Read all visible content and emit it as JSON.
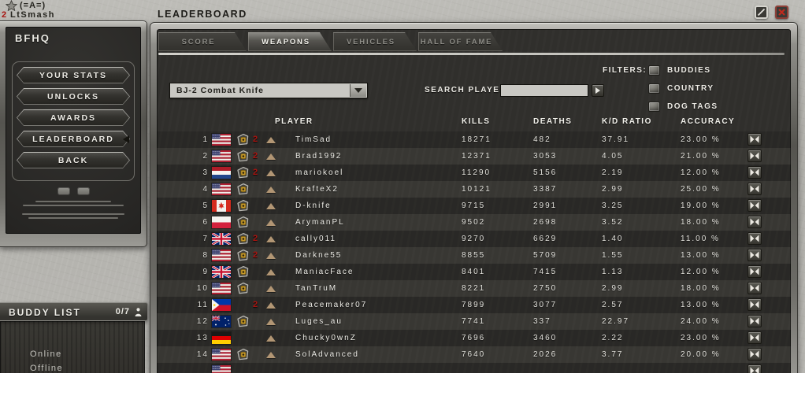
{
  "player_info": {
    "rank_level": "2",
    "clan_tag": "(=A=)",
    "name": "LtSmash"
  },
  "bfhq": {
    "title": "BFHQ",
    "menu": [
      "YOUR STATS",
      "UNLOCKS",
      "AWARDS",
      "LEADERBOARD",
      "BACK"
    ],
    "active_index": 3
  },
  "buddy_list": {
    "title": "BUDDY LIST",
    "count": "0/7",
    "groups": [
      "Online",
      "Offline"
    ]
  },
  "leaderboard": {
    "title": "LEADERBOARD",
    "tabs": [
      "SCORE",
      "WEAPONS",
      "VEHICLES",
      "HALL OF FAME"
    ],
    "active_tab_index": 1
  },
  "controls": {
    "weapon_select_value": "BJ-2 Combat Knife",
    "search_label": "SEARCH PLAYER:",
    "search_value": "",
    "filters_label": "FILTERS:",
    "filter_options": [
      "BUDDIES",
      "COUNTRY",
      "DOG TAGS"
    ]
  },
  "table": {
    "headers": {
      "player": "PLAYER",
      "kills": "KILLS",
      "deaths": "DEATHS",
      "kd": "K/D RATIO",
      "accuracy": "ACCURACY"
    },
    "rows": [
      {
        "rank": "1",
        "country": "us",
        "dog_tag": true,
        "tag_count": "2",
        "name": "TimSad",
        "kills": "18271",
        "deaths": "482",
        "kd": "37.91",
        "accuracy": "23.00 %"
      },
      {
        "rank": "2",
        "country": "us",
        "dog_tag": true,
        "tag_count": "2",
        "name": "Brad1992",
        "kills": "12371",
        "deaths": "3053",
        "kd": "4.05",
        "accuracy": "21.00 %"
      },
      {
        "rank": "3",
        "country": "nl",
        "dog_tag": true,
        "tag_count": "2",
        "name": "mariokoel",
        "kills": "11290",
        "deaths": "5156",
        "kd": "2.19",
        "accuracy": "12.00 %"
      },
      {
        "rank": "4",
        "country": "us",
        "dog_tag": true,
        "tag_count": "",
        "name": "KrafteX2",
        "kills": "10121",
        "deaths": "3387",
        "kd": "2.99",
        "accuracy": "25.00 %"
      },
      {
        "rank": "5",
        "country": "ca",
        "dog_tag": true,
        "tag_count": "",
        "name": "D-knife",
        "kills": "9715",
        "deaths": "2991",
        "kd": "3.25",
        "accuracy": "19.00 %"
      },
      {
        "rank": "6",
        "country": "pl",
        "dog_tag": true,
        "tag_count": "",
        "name": "ArymanPL",
        "kills": "9502",
        "deaths": "2698",
        "kd": "3.52",
        "accuracy": "18.00 %"
      },
      {
        "rank": "7",
        "country": "gb",
        "dog_tag": true,
        "tag_count": "2",
        "name": "cally011",
        "kills": "9270",
        "deaths": "6629",
        "kd": "1.40",
        "accuracy": "11.00 %"
      },
      {
        "rank": "8",
        "country": "us",
        "dog_tag": true,
        "tag_count": "2",
        "name": "Darkne55",
        "kills": "8855",
        "deaths": "5709",
        "kd": "1.55",
        "accuracy": "13.00 %"
      },
      {
        "rank": "9",
        "country": "gb",
        "dog_tag": true,
        "tag_count": "",
        "name": "ManiacFace",
        "kills": "8401",
        "deaths": "7415",
        "kd": "1.13",
        "accuracy": "12.00 %"
      },
      {
        "rank": "10",
        "country": "us",
        "dog_tag": true,
        "tag_count": "",
        "name": "TanTruM",
        "kills": "8221",
        "deaths": "2750",
        "kd": "2.99",
        "accuracy": "18.00 %"
      },
      {
        "rank": "11",
        "country": "ph",
        "dog_tag": false,
        "tag_count": "2",
        "name": "Peacemaker07",
        "kills": "7899",
        "deaths": "3077",
        "kd": "2.57",
        "accuracy": "13.00 %"
      },
      {
        "rank": "12",
        "country": "au",
        "dog_tag": true,
        "tag_count": "",
        "name": "Luges_au",
        "kills": "7741",
        "deaths": "337",
        "kd": "22.97",
        "accuracy": "24.00 %"
      },
      {
        "rank": "13",
        "country": "de",
        "dog_tag": false,
        "tag_count": "",
        "name": "Chucky0wnZ",
        "kills": "7696",
        "deaths": "3460",
        "kd": "2.22",
        "accuracy": "23.00 %"
      },
      {
        "rank": "14",
        "country": "us",
        "dog_tag": true,
        "tag_count": "",
        "name": "SolAdvanced",
        "kills": "7640",
        "deaths": "2026",
        "kd": "3.77",
        "accuracy": "20.00 %"
      }
    ],
    "partial_row": {
      "country": "us"
    }
  },
  "colors": {
    "accent_red": "#a81410",
    "dogtag_gold": "#c79a2a",
    "panel_dark": "#302f2c",
    "concrete": "#b5b4af"
  }
}
